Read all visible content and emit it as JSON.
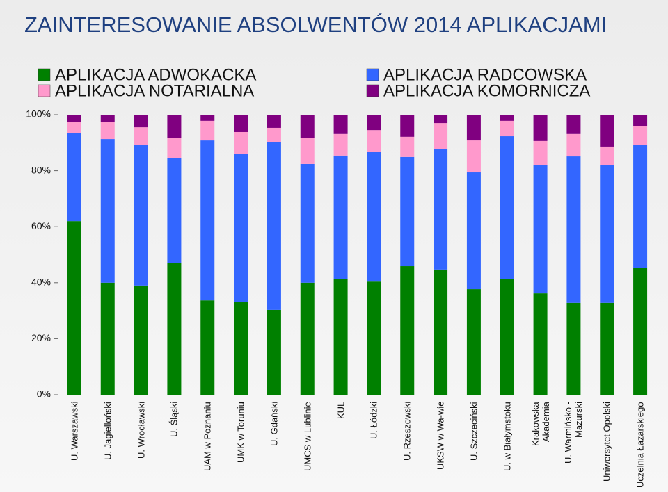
{
  "chart_data": {
    "type": "stacked_bar",
    "title": "ZAINTERESOWANIE ABSOLWENTÓW 2014 APLIKACJAMI",
    "categories": [
      "U. Warszawski",
      "U. Jagielloński",
      "U. Wrocławski",
      "U. Śląski",
      "UAM w Poznaniu",
      "UMK w Toruniu",
      "U. Gdański",
      "UMCS w Lublinie",
      "KUL",
      "U. Łódzki",
      "U. Rzeszowski",
      "UKSW w Wa-wie",
      "U. Szczeciński",
      "U. w Białymstoku",
      "Krakowska Akademia",
      "U. Warmińsko - Mazurski",
      "Uniwersytet Opolski",
      "Uczelnia Łazarskiego"
    ],
    "series": [
      {
        "name": "APLIKACJA ADWOKACKA",
        "color": "#008000",
        "values": [
          62.0,
          40.0,
          39.0,
          47.1,
          33.7,
          33.0,
          30.3,
          40.0,
          41.2,
          40.4,
          45.9,
          44.7,
          37.7,
          41.2,
          36.2,
          32.8,
          32.8,
          45.4
        ]
      },
      {
        "name": "APLIKACJA RADCOWSKA",
        "color": "#3366ff",
        "values": [
          31.5,
          51.3,
          50.3,
          37.3,
          57.1,
          53.1,
          60.0,
          42.4,
          44.2,
          46.2,
          39.0,
          43.1,
          41.7,
          51.1,
          45.7,
          52.3,
          49.1,
          43.7
        ]
      },
      {
        "name": "APLIKACJA NOTARIALNA",
        "color": "#ff99cc",
        "values": [
          4.0,
          6.2,
          6.2,
          7.2,
          7.0,
          7.7,
          5.0,
          9.4,
          7.7,
          7.9,
          7.2,
          9.2,
          11.4,
          5.5,
          8.7,
          8.0,
          6.7,
          6.7
        ]
      },
      {
        "name": "APLIKACJA KOMORNICZA",
        "color": "#800080",
        "values": [
          2.5,
          2.5,
          4.5,
          8.4,
          2.2,
          6.2,
          4.7,
          8.2,
          6.9,
          5.5,
          7.9,
          3.0,
          9.2,
          2.2,
          9.4,
          6.9,
          11.4,
          4.2
        ]
      }
    ],
    "ylim": [
      0,
      100
    ],
    "yticks": [
      {
        "value": 0,
        "label": "0%"
      },
      {
        "value": 20,
        "label": "20%"
      },
      {
        "value": 40,
        "label": "40%"
      },
      {
        "value": 60,
        "label": "60%"
      },
      {
        "value": 80,
        "label": "80%"
      },
      {
        "value": 100,
        "label": "100%"
      }
    ],
    "grid": false
  }
}
